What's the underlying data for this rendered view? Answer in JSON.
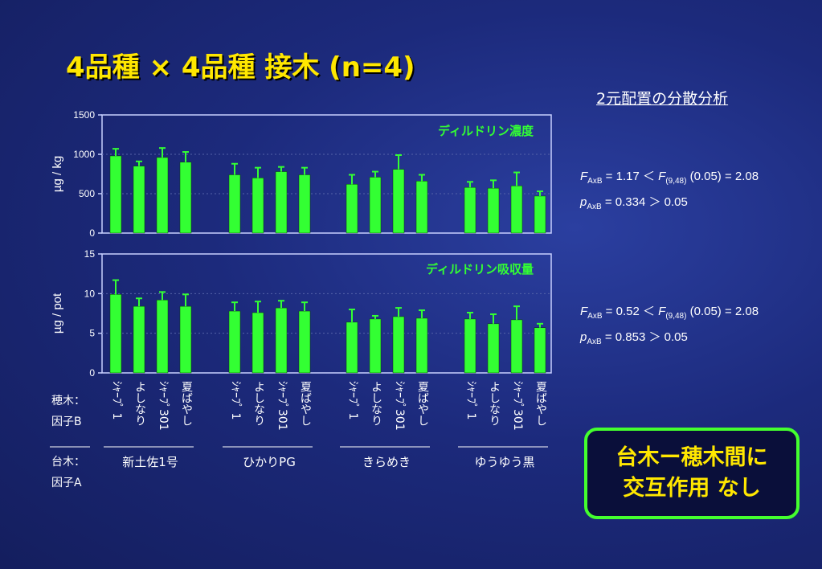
{
  "title": "4品種 × 4品種  接木  (n=4)",
  "anova_title": "2元配置の分散分析",
  "colors": {
    "bar": "#33ff33",
    "title": "#ffe700",
    "subtitle": "#33ff33",
    "frame": "#c8d0ff"
  },
  "stats": {
    "concentration": {
      "line1": {
        "var": "F",
        "sub": "AxB",
        "text": " = 1.17 ＜ ",
        "var2": "F",
        "sub2": "(9,48)",
        "text2": " (0.05) = 2.08"
      },
      "line2": {
        "var": "p",
        "sub": "AxB",
        "text": " = 0.334  ＞  0.05"
      }
    },
    "absorption": {
      "line1": {
        "var": "F",
        "sub": "AxB",
        "text": " = 0.52 ＜ ",
        "var2": "F",
        "sub2": "(9,48)",
        "text2": " (0.05) = 2.08"
      },
      "line2": {
        "var": "p",
        "sub": "AxB",
        "text": " = 0.853  ＞  0.05"
      }
    }
  },
  "row_labels": {
    "scion": "穂木：",
    "factor_b": "因子B",
    "rootstock": "台木：",
    "factor_a": "因子A"
  },
  "conclusion": {
    "line1": "台木ー穂木間に",
    "line2": "交互作用  なし"
  },
  "chart_data": [
    {
      "type": "bar",
      "title": "ディルドリン濃度",
      "ylabel": "µg / kg",
      "ylim": [
        0,
        1500
      ],
      "yticks": [
        0,
        500,
        1000,
        1500
      ],
      "grid": true,
      "groups": [
        "新土佐1号",
        "ひかりPG",
        "きらめき",
        "ゆうゆう黒"
      ],
      "categories": [
        "ｼｬｰﾌﾟ 1",
        "よしなり",
        "ｼｬｰﾌﾟ301",
        "夏ばやし"
      ],
      "values": [
        [
          980,
          850,
          960,
          900
        ],
        [
          740,
          700,
          780,
          740
        ],
        [
          620,
          710,
          810,
          660
        ],
        [
          580,
          570,
          600,
          470
        ]
      ],
      "errors": [
        [
          90,
          60,
          120,
          130
        ],
        [
          140,
          130,
          60,
          90
        ],
        [
          120,
          70,
          180,
          80
        ],
        [
          70,
          100,
          170,
          60
        ]
      ]
    },
    {
      "type": "bar",
      "title": "ディルドリン吸収量",
      "ylabel": "µg /  pot",
      "ylim": [
        0,
        15
      ],
      "yticks": [
        0,
        5,
        10,
        15
      ],
      "grid": true,
      "groups": [
        "新土佐1号",
        "ひかりPG",
        "きらめき",
        "ゆうゆう黒"
      ],
      "categories": [
        "ｼｬｰﾌﾟ 1",
        "よしなり",
        "ｼｬｰﾌﾟ301",
        "夏ばやし"
      ],
      "values": [
        [
          9.9,
          8.4,
          9.2,
          8.4
        ],
        [
          7.8,
          7.6,
          8.2,
          7.8
        ],
        [
          6.4,
          6.8,
          7.1,
          6.9
        ],
        [
          6.8,
          6.2,
          6.7,
          5.7
        ]
      ],
      "errors": [
        [
          1.8,
          1.0,
          1.0,
          1.5
        ],
        [
          1.1,
          1.4,
          0.9,
          1.1
        ],
        [
          1.6,
          0.4,
          1.1,
          1.0
        ],
        [
          0.8,
          1.2,
          1.7,
          0.5
        ]
      ]
    }
  ]
}
